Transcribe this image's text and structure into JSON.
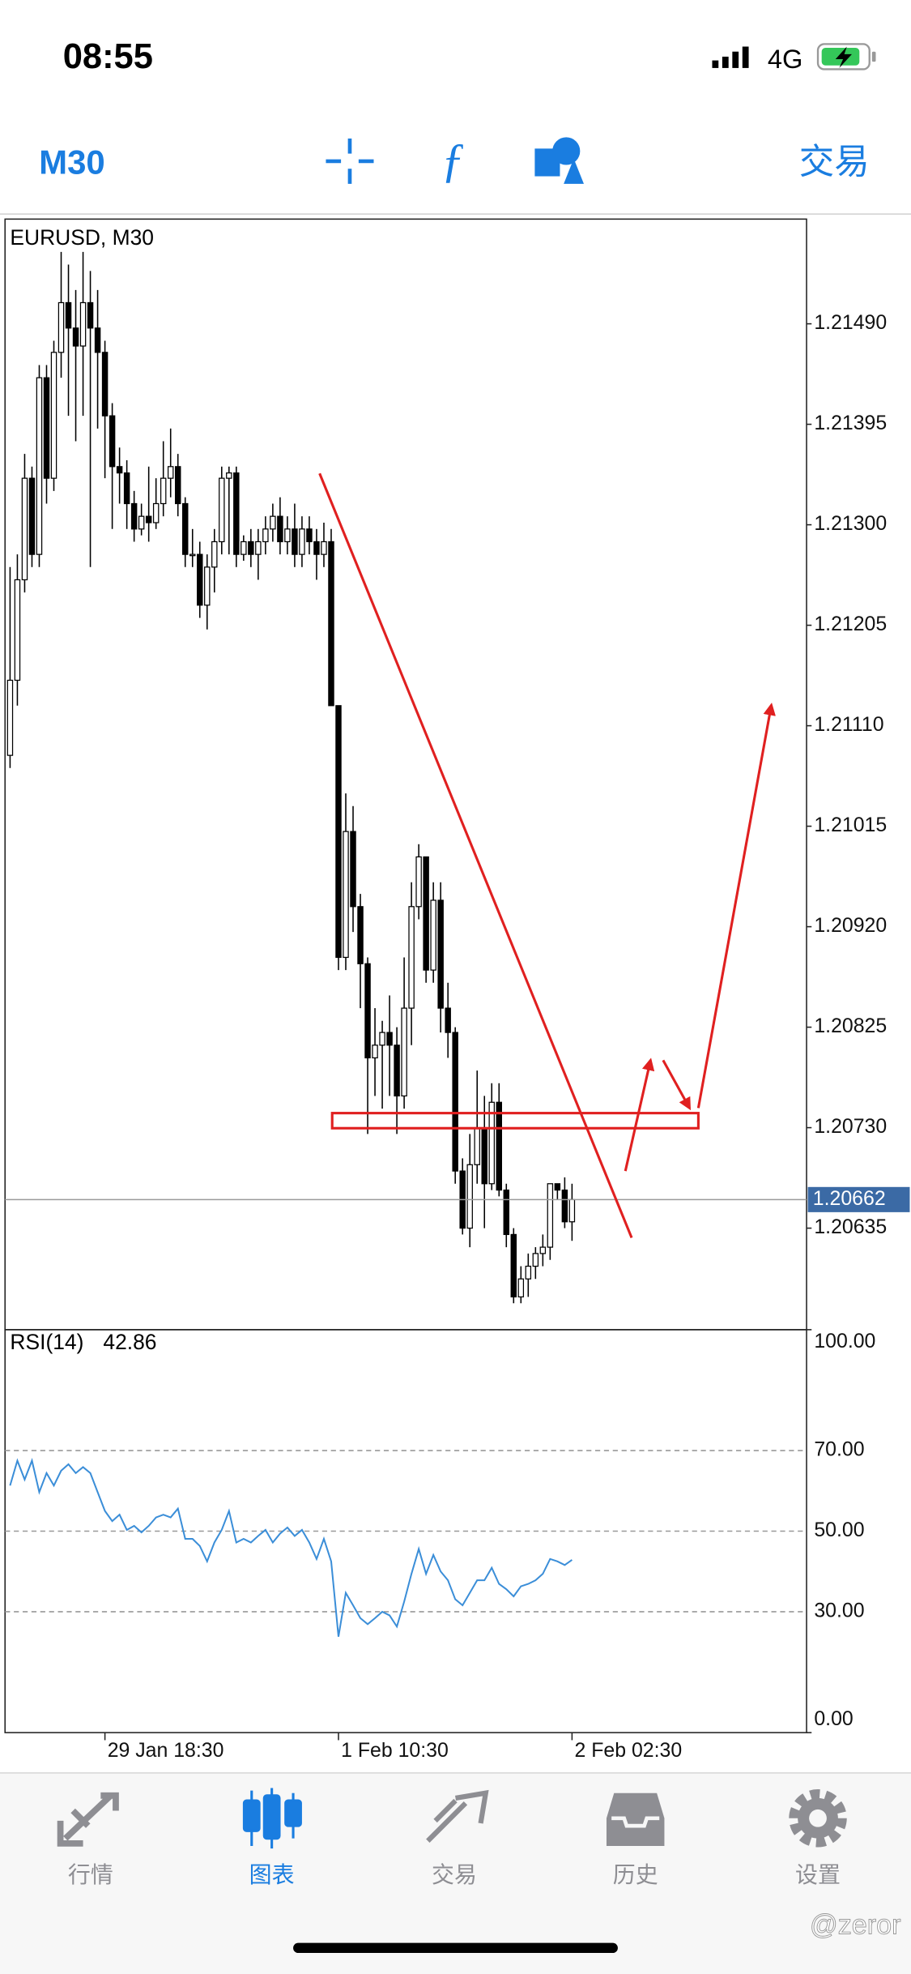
{
  "status_bar": {
    "time": "08:55",
    "network": "4G"
  },
  "toolbar": {
    "timeframe": "M30",
    "trade": "交易"
  },
  "chart_data": [
    {
      "type": "candlestick",
      "title": "EURUSD, M30",
      "up_color": "#ffffff",
      "down_color": "#000000",
      "categories": [
        null,
        null,
        null,
        null,
        null,
        null,
        null,
        null,
        null,
        null,
        null,
        null,
        null,
        "29 Jan 18:30",
        null,
        null,
        null,
        null,
        null,
        null,
        null,
        null,
        null,
        null,
        null,
        null,
        null,
        null,
        null,
        null,
        null,
        null,
        null,
        null,
        null,
        null,
        null,
        null,
        null,
        null,
        null,
        null,
        null,
        null,
        null,
        "1 Feb 10:30",
        null,
        null,
        null,
        null,
        null,
        null,
        null,
        null,
        null,
        null,
        null,
        null,
        null,
        null,
        null,
        null,
        null,
        null,
        null,
        null,
        null,
        null,
        null,
        null,
        null,
        null,
        null,
        null,
        null,
        null,
        null,
        "2 Feb 02:30"
      ],
      "open": [
        1.21082,
        1.21153,
        1.21248,
        1.21344,
        1.21272,
        1.21439,
        1.21344,
        1.21463,
        1.2151,
        1.21486,
        1.21469,
        1.2151,
        1.21486,
        1.21463,
        1.21403,
        1.21355,
        1.21349,
        1.2132,
        1.21296,
        1.21308,
        1.21302,
        1.2132,
        1.21344,
        1.21355,
        1.2132,
        1.21272,
        1.21272,
        1.21224,
        1.2126,
        1.21284,
        1.21344,
        1.21349,
        1.21272,
        1.21284,
        1.21272,
        1.21284,
        1.21296,
        1.21308,
        1.21284,
        1.21296,
        1.21272,
        1.21296,
        1.21284,
        1.21272,
        1.21284,
        1.21129,
        1.20891,
        1.2101,
        1.20939,
        1.20885,
        1.20796,
        1.20808,
        1.2082,
        1.20808,
        1.2076,
        1.20843,
        1.20939,
        1.20986,
        1.20879,
        1.20945,
        1.20843,
        1.2082,
        1.20689,
        1.20635,
        1.20695,
        1.2073,
        1.20677,
        1.20754,
        1.20671,
        1.20629,
        1.2057,
        1.20587,
        1.20599,
        1.20611,
        1.20617,
        1.20677,
        1.20671,
        1.20641
      ],
      "high": [
        1.2126,
        1.21272,
        1.21367,
        1.21355,
        1.21451,
        1.21451,
        1.21474,
        1.21558,
        1.21546,
        1.21522,
        1.21558,
        1.2154,
        1.21522,
        1.21474,
        1.21415,
        1.21373,
        1.21361,
        1.21332,
        1.2132,
        1.21355,
        1.21344,
        1.21379,
        1.21391,
        1.21367,
        1.21326,
        1.21296,
        1.21284,
        1.21272,
        1.21296,
        1.21355,
        1.21355,
        1.21355,
        1.2129,
        1.21296,
        1.21296,
        1.21308,
        1.2132,
        1.21326,
        1.21308,
        1.2132,
        1.21308,
        1.21308,
        1.21296,
        1.21302,
        1.21296,
        1.21129,
        1.21046,
        1.21034,
        1.20951,
        1.20891,
        1.20843,
        1.20831,
        1.20855,
        1.20825,
        1.20891,
        1.20962,
        1.20998,
        1.20986,
        1.20962,
        1.20962,
        1.20867,
        1.20825,
        1.20701,
        1.20724,
        1.20784,
        1.2076,
        1.20772,
        1.20772,
        1.20677,
        1.20635,
        1.20599,
        1.20611,
        1.20617,
        1.20629,
        1.20677,
        1.20677,
        1.20683,
        1.20677
      ],
      "low": [
        1.2107,
        1.21129,
        1.21236,
        1.2126,
        1.2126,
        1.2132,
        1.21332,
        1.21439,
        1.21403,
        1.21379,
        1.21403,
        1.2126,
        1.21391,
        1.21344,
        1.21296,
        1.2132,
        1.21296,
        1.21284,
        1.2129,
        1.21284,
        1.21296,
        1.21308,
        1.21326,
        1.21308,
        1.2126,
        1.2126,
        1.21212,
        1.21201,
        1.21236,
        1.21272,
        1.21272,
        1.2126,
        1.21266,
        1.2126,
        1.21248,
        1.21272,
        1.21284,
        1.21272,
        1.21272,
        1.2126,
        1.2126,
        1.21272,
        1.21248,
        1.2126,
        1.21129,
        1.20879,
        1.20879,
        1.20915,
        1.20843,
        1.20724,
        1.2076,
        1.20748,
        1.2076,
        1.20724,
        1.20748,
        1.20808,
        1.20927,
        1.20867,
        1.20867,
        1.2082,
        1.20796,
        1.20677,
        1.20629,
        1.20617,
        1.20677,
        1.20635,
        1.20671,
        1.20665,
        1.20617,
        1.20564,
        1.20564,
        1.2057,
        1.20587,
        1.20599,
        1.20605,
        1.20662,
        1.20635,
        1.20623
      ],
      "close": [
        1.21153,
        1.21248,
        1.21344,
        1.21272,
        1.21439,
        1.21344,
        1.21463,
        1.2151,
        1.21486,
        1.21469,
        1.2151,
        1.21486,
        1.21463,
        1.21403,
        1.21355,
        1.21349,
        1.2132,
        1.21296,
        1.21308,
        1.21302,
        1.2132,
        1.21344,
        1.21355,
        1.2132,
        1.21272,
        1.21272,
        1.21224,
        1.2126,
        1.21284,
        1.21344,
        1.21349,
        1.21272,
        1.21284,
        1.21272,
        1.21284,
        1.21296,
        1.21308,
        1.21284,
        1.21296,
        1.21272,
        1.21296,
        1.21284,
        1.21272,
        1.21284,
        1.21129,
        1.20891,
        1.2101,
        1.20939,
        1.20885,
        1.20796,
        1.20808,
        1.2082,
        1.20808,
        1.2076,
        1.20843,
        1.20939,
        1.20986,
        1.20879,
        1.20945,
        1.20843,
        1.2082,
        1.20689,
        1.20635,
        1.20695,
        1.2073,
        1.20677,
        1.20754,
        1.20671,
        1.20629,
        1.2057,
        1.20587,
        1.20599,
        1.20611,
        1.20617,
        1.20677,
        1.20671,
        1.20641,
        1.20662
      ],
      "ylim": [
        1.20539,
        1.21589
      ],
      "yticks": [
        {
          "value": 1.2149,
          "label": "1.21490"
        },
        1.21395,
        {
          "value": 1.213,
          "label": "1.21300"
        },
        1.21205,
        {
          "value": 1.2111,
          "label": "1.21110"
        },
        1.21015,
        {
          "value": 1.2092,
          "label": "1.20920"
        },
        1.20825,
        {
          "value": 1.2073,
          "label": "1.20730"
        },
        1.20635
      ]
    },
    {
      "type": "line",
      "title": "RSI(14)",
      "color": "#3b8ed8",
      "values": [
        61.3,
        67.5,
        62.8,
        67.5,
        59.7,
        64.4,
        61.3,
        65.0,
        66.6,
        64.4,
        65.9,
        64.4,
        59.7,
        55.0,
        52.5,
        54.1,
        50.3,
        51.3,
        49.7,
        51.3,
        53.4,
        54.1,
        53.4,
        55.6,
        48.1,
        48.1,
        46.3,
        42.5,
        47.2,
        50.3,
        55.0,
        47.2,
        48.1,
        47.2,
        48.8,
        50.3,
        47.2,
        49.4,
        50.9,
        48.8,
        50.3,
        47.2,
        43.1,
        48.1,
        42.5,
        23.8,
        34.7,
        31.6,
        28.4,
        26.9,
        28.4,
        30.0,
        29.1,
        26.3,
        32.5,
        39.4,
        45.6,
        39.4,
        44.1,
        40.0,
        37.8,
        33.1,
        31.6,
        34.7,
        37.8,
        37.8,
        40.9,
        36.9,
        35.6,
        33.8,
        36.3,
        36.9,
        37.8,
        39.4,
        43.1,
        42.5,
        41.6,
        42.86
      ],
      "ylim": [
        0,
        100
      ],
      "yticks": [
        {
          "value": 100,
          "label": "100.00"
        },
        {
          "value": 70,
          "label": "70.00"
        },
        {
          "value": 50,
          "label": "50.00"
        },
        {
          "value": 30,
          "label": "30.00"
        },
        {
          "value": 0,
          "label": "0.00"
        }
      ]
    }
  ],
  "tab_bar": {
    "tabs": [
      {
        "label": "行情"
      },
      {
        "label": "图表"
      },
      {
        "label": "交易"
      },
      {
        "label": "历史"
      },
      {
        "label": "设置"
      }
    ]
  },
  "watermark": "@zeror"
}
